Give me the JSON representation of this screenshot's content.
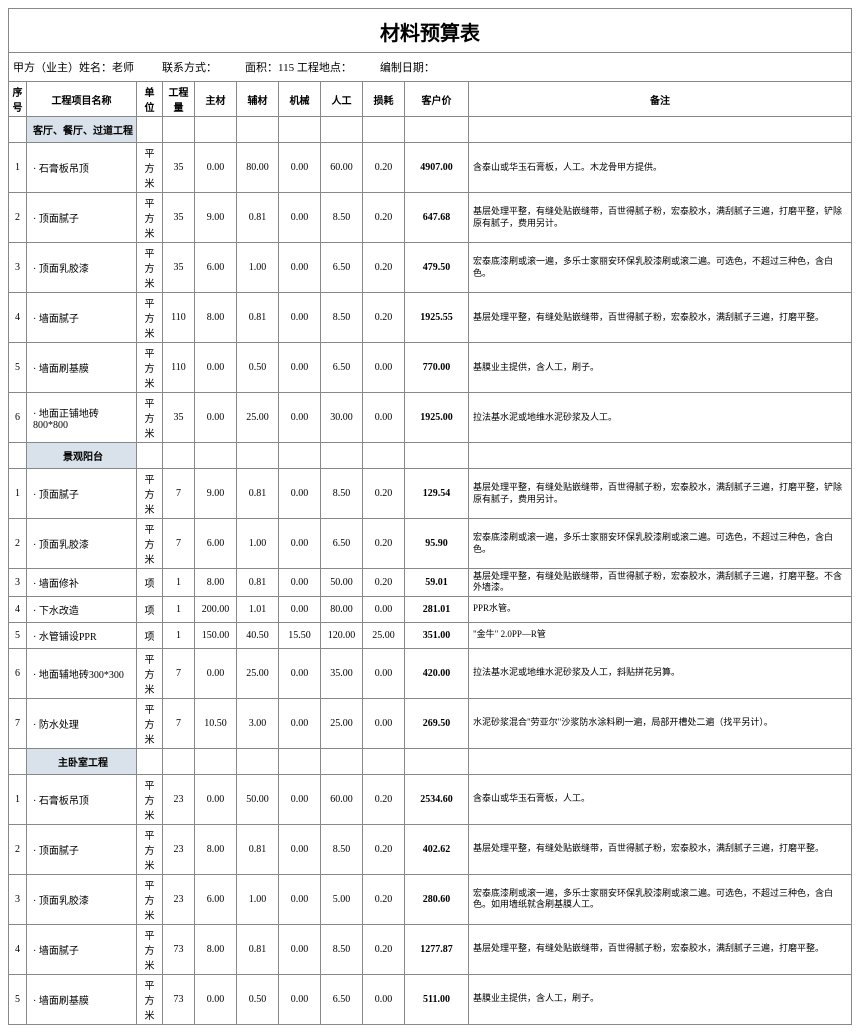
{
  "title": "材料预算表",
  "meta": {
    "owner_label": "甲方（业主）姓名：",
    "owner": "老师",
    "contact_label": "联系方式：",
    "contact": "",
    "area_label": "面积：",
    "area": "115",
    "site_label": "工程地点：",
    "site": "",
    "date_label": "编制日期：",
    "date": ""
  },
  "headers": [
    "序号",
    "工程项目名称",
    "单位",
    "工程量",
    "主材",
    "辅材",
    "机械",
    "人工",
    "损耗",
    "客户价",
    "备注"
  ],
  "sections": [
    {
      "name": "客厅、餐厅、过道工程",
      "rows": [
        {
          "n": "1",
          "name": "· 石膏板吊顶",
          "unit": "平方米",
          "qty": "35",
          "zc": "0.00",
          "fc": "80.00",
          "jx": "0.00",
          "rg": "60.00",
          "sh": "0.20",
          "price": "4907.00",
          "note": "含泰山或华玉石膏板，人工。木龙骨甲方提供。"
        },
        {
          "n": "2",
          "name": "· 顶面腻子",
          "unit": "平方米",
          "qty": "35",
          "zc": "9.00",
          "fc": "0.81",
          "jx": "0.00",
          "rg": "8.50",
          "sh": "0.20",
          "price": "647.68",
          "note": "基层处理平整，有缝处贴嵌缝带，百世得腻子粉，宏泰胶水，满刮腻子三遍，打磨平整，铲除原有腻子，费用另计。"
        },
        {
          "n": "3",
          "name": "· 顶面乳胶漆",
          "unit": "平方米",
          "qty": "35",
          "zc": "6.00",
          "fc": "1.00",
          "jx": "0.00",
          "rg": "6.50",
          "sh": "0.20",
          "price": "479.50",
          "note": "宏泰底漆刷或滚一遍，多乐士家丽安环保乳胶漆刷或滚二遍。可选色，不超过三种色，含白色。"
        },
        {
          "n": "4",
          "name": "· 墙面腻子",
          "unit": "平方米",
          "qty": "110",
          "zc": "8.00",
          "fc": "0.81",
          "jx": "0.00",
          "rg": "8.50",
          "sh": "0.20",
          "price": "1925.55",
          "note": "基层处理平整，有缝处贴嵌缝带，百世得腻子粉，宏泰胶水，满刮腻子三遍，打磨平整。"
        },
        {
          "n": "5",
          "name": "· 墙面刷基膜",
          "unit": "平方米",
          "qty": "110",
          "zc": "0.00",
          "fc": "0.50",
          "jx": "0.00",
          "rg": "6.50",
          "sh": "0.00",
          "price": "770.00",
          "note": "基膜业主提供，含人工，刷子。"
        },
        {
          "n": "6",
          "name": "· 地面正铺地砖800*800",
          "unit": "平方米",
          "qty": "35",
          "zc": "0.00",
          "fc": "25.00",
          "jx": "0.00",
          "rg": "30.00",
          "sh": "0.00",
          "price": "1925.00",
          "note": "拉法基水泥或地维水泥砂浆及人工。"
        }
      ]
    },
    {
      "name": "景观阳台",
      "rows": [
        {
          "n": "1",
          "name": "· 顶面腻子",
          "unit": "平方米",
          "qty": "7",
          "zc": "9.00",
          "fc": "0.81",
          "jx": "0.00",
          "rg": "8.50",
          "sh": "0.20",
          "price": "129.54",
          "note": "基层处理平整，有缝处贴嵌缝带，百世得腻子粉，宏泰胶水，满刮腻子三遍，打磨平整，铲除原有腻子，费用另计。"
        },
        {
          "n": "2",
          "name": "· 顶面乳胶漆",
          "unit": "平方米",
          "qty": "7",
          "zc": "6.00",
          "fc": "1.00",
          "jx": "0.00",
          "rg": "6.50",
          "sh": "0.20",
          "price": "95.90",
          "note": "宏泰底漆刷或滚一遍，多乐士家丽安环保乳胶漆刷或滚二遍。可选色，不超过三种色，含白色。"
        },
        {
          "n": "3",
          "name": "· 墙面修补",
          "unit": "项",
          "qty": "1",
          "zc": "8.00",
          "fc": "0.81",
          "jx": "0.00",
          "rg": "50.00",
          "sh": "0.20",
          "price": "59.01",
          "note": "基层处理平整，有缝处贴嵌缝带，百世得腻子粉，宏泰胶水，满刮腻子三遍，打磨平整。不含外墙漆。"
        },
        {
          "n": "4",
          "name": "· 下水改造",
          "unit": "项",
          "qty": "1",
          "zc": "200.00",
          "fc": "1.01",
          "jx": "0.00",
          "rg": "80.00",
          "sh": "0.00",
          "price": "281.01",
          "note": "PPR水管。"
        },
        {
          "n": "5",
          "name": "· 水管铺设PPR",
          "unit": "项",
          "qty": "1",
          "zc": "150.00",
          "fc": "40.50",
          "jx": "15.50",
          "rg": "120.00",
          "sh": "25.00",
          "price": "351.00",
          "note": "\"金牛\" 2.0PP—R管"
        },
        {
          "n": "6",
          "name": "· 地面辅地砖300*300",
          "unit": "平方米",
          "qty": "7",
          "zc": "0.00",
          "fc": "25.00",
          "jx": "0.00",
          "rg": "35.00",
          "sh": "0.00",
          "price": "420.00",
          "note": "拉法基水泥或地维水泥砂浆及人工，斜贴拼花另算。"
        },
        {
          "n": "7",
          "name": "· 防水处理",
          "unit": "平方米",
          "qty": "7",
          "zc": "10.50",
          "fc": "3.00",
          "jx": "0.00",
          "rg": "25.00",
          "sh": "0.00",
          "price": "269.50",
          "note": "水泥砂浆混合\"劳亚尔\"沙浆防水涂料刷一遍，局部开槽处二遍（找平另计）。"
        }
      ]
    },
    {
      "name": "主卧室工程",
      "rows": [
        {
          "n": "1",
          "name": "· 石膏板吊顶",
          "unit": "平方米",
          "qty": "23",
          "zc": "0.00",
          "fc": "50.00",
          "jx": "0.00",
          "rg": "60.00",
          "sh": "0.20",
          "price": "2534.60",
          "note": "含泰山或华玉石膏板，人工。"
        },
        {
          "n": "2",
          "name": "· 顶面腻子",
          "unit": "平方米",
          "qty": "23",
          "zc": "8.00",
          "fc": "0.81",
          "jx": "0.00",
          "rg": "8.50",
          "sh": "0.20",
          "price": "402.62",
          "note": "基层处理平整，有缝处贴嵌缝带，百世得腻子粉，宏泰胶水，满刮腻子三遍，打磨平整。"
        },
        {
          "n": "3",
          "name": "· 顶面乳胶漆",
          "unit": "平方米",
          "qty": "23",
          "zc": "6.00",
          "fc": "1.00",
          "jx": "0.00",
          "rg": "5.00",
          "sh": "0.20",
          "price": "280.60",
          "note": "宏泰底漆刷或滚一遍，多乐士家丽安环保乳胶漆刷或滚二遍。可选色，不超过三种色，含白色。如用墙纸就含刷基膜人工。"
        },
        {
          "n": "4",
          "name": "· 墙面腻子",
          "unit": "平方米",
          "qty": "73",
          "zc": "8.00",
          "fc": "0.81",
          "jx": "0.00",
          "rg": "8.50",
          "sh": "0.20",
          "price": "1277.87",
          "note": "基层处理平整，有缝处贴嵌缝带，百世得腻子粉，宏泰胶水，满刮腻子三遍，打磨平整。"
        },
        {
          "n": "5",
          "name": "· 墙面刷基膜",
          "unit": "平方米",
          "qty": "73",
          "zc": "0.00",
          "fc": "0.50",
          "jx": "0.00",
          "rg": "6.50",
          "sh": "0.00",
          "price": "511.00",
          "note": "基膜业主提供，含人工，刷子。"
        }
      ]
    }
  ]
}
